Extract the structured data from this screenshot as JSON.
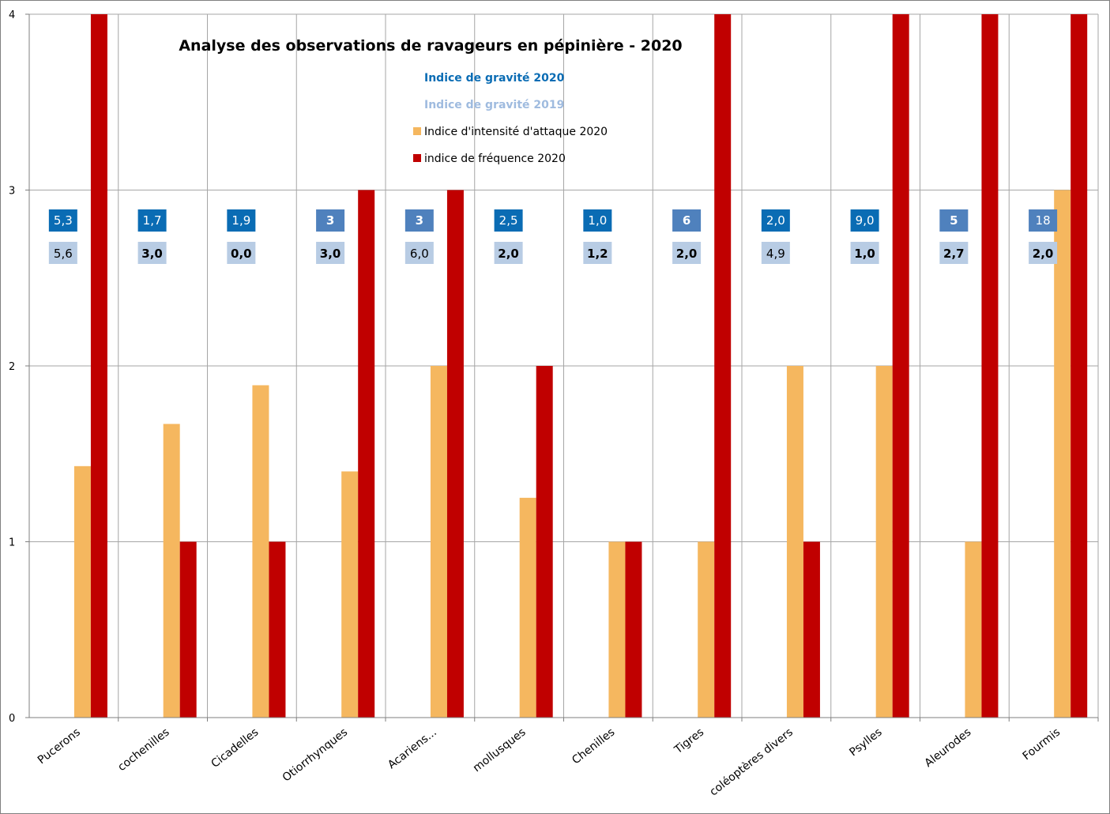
{
  "colors": {
    "intensite": "#F5B75F",
    "frequence": "#C00000",
    "gravite_2020": "#0A6CB4",
    "gravite_2020_alt": "#4F81BD",
    "gravite_2019": "#B8CCE4",
    "legend_gravite_2020_text": "#0A6CB4",
    "legend_gravite_2019_text": "#9FBBDF",
    "grid": "#A6A6A6",
    "axis": "#7F7F7F"
  },
  "chart_data": {
    "type": "bar",
    "title": "Analyse des observations de ravageurs en pépinière - 2020",
    "xlabel": "",
    "ylabel": "",
    "ylim": [
      0,
      4
    ],
    "yticks": [
      "0",
      "1",
      "2",
      "3",
      "4"
    ],
    "grid": true,
    "legend_position": "top-center",
    "categories": [
      "Pucerons",
      "cochenilles",
      "Cicadelles",
      "Otiorrhynques",
      "Acariens...",
      "mollusques",
      "Chenilles",
      "Tigres",
      "coléoptères divers",
      "Psylles",
      "Aleurodes",
      "Fourmis"
    ],
    "series": [
      {
        "name": "Indice d'intensité d'attaque 2020",
        "values": [
          1.43,
          1.67,
          1.89,
          1.4,
          2,
          1.25,
          1,
          1,
          2,
          2,
          1,
          3
        ]
      },
      {
        "name": "indice de fréquence 2020",
        "values": [
          4,
          1,
          1,
          3,
          3,
          2,
          1,
          4,
          1,
          4,
          4,
          4
        ]
      }
    ],
    "legend": {
      "gravite_2020": "Indice de gravité 2020",
      "gravite_2019": "Indice de gravité 2019",
      "intensite": "Indice d'intensité d'attaque 2020",
      "frequence": "indice de fréquence 2020"
    },
    "annotations": {
      "gravite_2020": [
        "5,3",
        "1,7",
        "1,9",
        "3",
        "3",
        "2,5",
        "1,0",
        "6",
        "2,0",
        "9,0",
        "5",
        "18"
      ],
      "gravite_2020_bold": [
        false,
        false,
        false,
        true,
        true,
        false,
        false,
        true,
        false,
        false,
        true,
        false
      ],
      "gravite_2020_alt_color": [
        false,
        false,
        false,
        true,
        true,
        false,
        false,
        true,
        false,
        false,
        true,
        true
      ],
      "gravite_2019": [
        "5,6",
        "3,0",
        "0,0",
        "3,0",
        "6,0",
        "2,0",
        "1,2",
        "2,0",
        "4,9",
        "1,0",
        "2,7",
        "2,0"
      ],
      "gravite_2019_bold": [
        false,
        true,
        true,
        true,
        false,
        true,
        true,
        true,
        false,
        true,
        true,
        true
      ]
    }
  }
}
